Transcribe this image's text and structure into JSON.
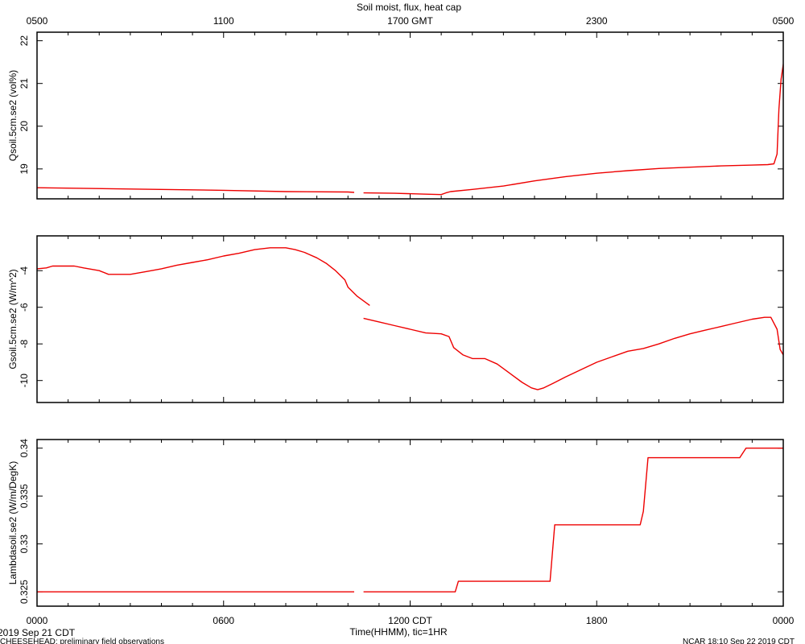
{
  "title": "Soil moist, flux, heat cap",
  "footer": {
    "start_date": "2019 Sep 21 CDT",
    "project": "CHEESEHEAD: preliminary field observations",
    "x_title": "Time(HHMM), tic=1HR",
    "stamp": "NCAR 18:10 Sep 22 2019 CDT"
  },
  "line_color": "#ee0000",
  "chart_data": {
    "type": "line",
    "x_unit": "hours since 0000 CDT",
    "x_range": [
      0,
      24
    ],
    "x_bottom_ticks": [
      {
        "x": 0,
        "label": "0000"
      },
      {
        "x": 6,
        "label": "0600"
      },
      {
        "x": 12,
        "label": "1200 CDT"
      },
      {
        "x": 18,
        "label": "1800"
      },
      {
        "x": 24,
        "label": "0000"
      }
    ],
    "x_top_ticks": [
      {
        "x": 0,
        "label": "0500"
      },
      {
        "x": 6,
        "label": "1100"
      },
      {
        "x": 12,
        "label": "1700 GMT"
      },
      {
        "x": 18,
        "label": "2300"
      },
      {
        "x": 24,
        "label": "0500"
      }
    ],
    "panels": [
      {
        "ylabel": "Qsoil.5cm.se2 (vol%)",
        "ylim": [
          18.3,
          22.2
        ],
        "yticks": [
          19,
          20,
          21,
          22
        ],
        "series": [
          [
            [
              0,
              18.56
            ],
            [
              3,
              18.53
            ],
            [
              6,
              18.5
            ],
            [
              8,
              18.47
            ],
            [
              10,
              18.46
            ],
            [
              10.2,
              18.45
            ]
          ],
          [
            [
              10.5,
              18.44
            ],
            [
              11.5,
              18.43
            ],
            [
              12.5,
              18.41
            ],
            [
              13,
              18.4
            ],
            [
              13.15,
              18.44
            ],
            [
              13.3,
              18.47
            ],
            [
              14,
              18.52
            ],
            [
              15,
              18.6
            ],
            [
              16,
              18.72
            ],
            [
              17,
              18.82
            ],
            [
              18,
              18.9
            ],
            [
              19,
              18.96
            ],
            [
              20,
              19.01
            ],
            [
              21,
              19.04
            ],
            [
              22,
              19.07
            ],
            [
              23,
              19.09
            ],
            [
              23.5,
              19.1
            ],
            [
              23.7,
              19.12
            ],
            [
              23.8,
              19.35
            ],
            [
              23.86,
              20.4
            ],
            [
              23.93,
              21.1
            ],
            [
              24,
              21.45
            ],
            [
              24.1,
              21.7
            ],
            [
              24.2,
              21.85
            ],
            [
              24.3,
              21.9
            ]
          ]
        ]
      },
      {
        "ylabel": "Gsoil.5cm.se2 (W/m^2)",
        "ylim": [
          -11.2,
          -2.1
        ],
        "yticks": [
          -4,
          -6,
          -8,
          -10
        ],
        "series": [
          [
            [
              0,
              -3.9
            ],
            [
              0.3,
              -3.85
            ],
            [
              0.5,
              -3.75
            ],
            [
              1.2,
              -3.75
            ],
            [
              1.5,
              -3.85
            ],
            [
              2,
              -4
            ],
            [
              2.3,
              -4.2
            ],
            [
              3,
              -4.2
            ],
            [
              3.5,
              -4.05
            ],
            [
              4,
              -3.9
            ],
            [
              4.5,
              -3.7
            ],
            [
              5,
              -3.55
            ],
            [
              5.5,
              -3.4
            ],
            [
              6,
              -3.2
            ],
            [
              6.5,
              -3.05
            ],
            [
              7,
              -2.85
            ],
            [
              7.5,
              -2.75
            ],
            [
              8,
              -2.75
            ],
            [
              8.3,
              -2.85
            ],
            [
              8.6,
              -3
            ],
            [
              9,
              -3.3
            ],
            [
              9.3,
              -3.6
            ],
            [
              9.6,
              -4
            ],
            [
              9.9,
              -4.5
            ],
            [
              10,
              -4.9
            ],
            [
              10.3,
              -5.4
            ],
            [
              10.7,
              -5.9
            ]
          ],
          [
            [
              10.5,
              -6.6
            ],
            [
              11,
              -6.8
            ],
            [
              11.5,
              -7
            ],
            [
              12,
              -7.2
            ],
            [
              12.5,
              -7.4
            ],
            [
              13,
              -7.45
            ],
            [
              13.25,
              -7.6
            ],
            [
              13.4,
              -8.2
            ],
            [
              13.7,
              -8.6
            ],
            [
              14,
              -8.8
            ],
            [
              14.4,
              -8.8
            ],
            [
              14.8,
              -9.1
            ],
            [
              15.2,
              -9.6
            ],
            [
              15.6,
              -10.1
            ],
            [
              15.9,
              -10.4
            ],
            [
              16.1,
              -10.5
            ],
            [
              16.3,
              -10.4
            ],
            [
              16.6,
              -10.15
            ],
            [
              17,
              -9.8
            ],
            [
              17.5,
              -9.4
            ],
            [
              18,
              -9
            ],
            [
              18.5,
              -8.7
            ],
            [
              19,
              -8.4
            ],
            [
              19.5,
              -8.25
            ],
            [
              20,
              -8
            ],
            [
              20.5,
              -7.7
            ],
            [
              21,
              -7.45
            ],
            [
              21.5,
              -7.25
            ],
            [
              22,
              -7.05
            ],
            [
              22.5,
              -6.85
            ],
            [
              23,
              -6.65
            ],
            [
              23.4,
              -6.55
            ],
            [
              23.6,
              -6.55
            ],
            [
              23.8,
              -7.2
            ],
            [
              23.9,
              -8.3
            ],
            [
              24,
              -8.6
            ],
            [
              24.2,
              -8.55
            ],
            [
              24.3,
              -8.4
            ]
          ]
        ]
      },
      {
        "ylabel": "Lambdasoil.se2 (W/m/DegK)",
        "ylim": [
          0.3235,
          0.3409
        ],
        "yticks": [
          0.325,
          0.33,
          0.335,
          0.34
        ],
        "series": [
          [
            [
              0,
              0.325
            ],
            [
              10.2,
              0.325
            ]
          ],
          [
            [
              10.5,
              0.325
            ],
            [
              13.45,
              0.325
            ],
            [
              13.55,
              0.3261
            ],
            [
              16.5,
              0.3261
            ],
            [
              16.65,
              0.332
            ],
            [
              19.4,
              0.332
            ],
            [
              19.5,
              0.3334
            ],
            [
              19.65,
              0.339
            ],
            [
              22.6,
              0.339
            ],
            [
              22.8,
              0.34
            ],
            [
              24.3,
              0.34
            ]
          ]
        ]
      }
    ]
  }
}
